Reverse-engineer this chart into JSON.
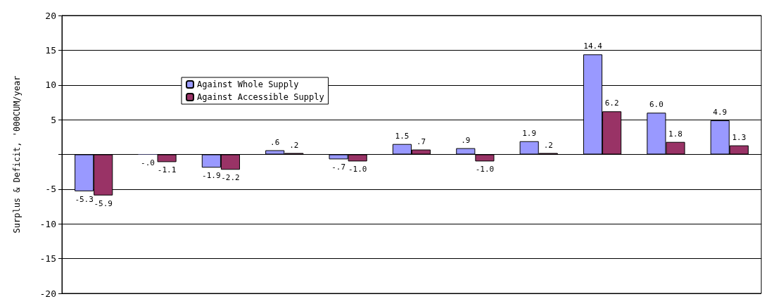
{
  "chart_data": {
    "type": "bar",
    "ylabel": "Surplus & Deficit, '000CUM/year",
    "categories": [
      null,
      null,
      null,
      null,
      null,
      null,
      null,
      null,
      null,
      null,
      null
    ],
    "series": [
      {
        "name": "Against Whole Supply",
        "color": "#9999ff",
        "values": [
          -5.3,
          -0.04,
          -1.9,
          0.6,
          -0.7,
          1.5,
          0.9,
          1.9,
          14.4,
          6.0,
          4.9
        ],
        "value_labels": [
          "-5.3",
          "-.0",
          "-1.9",
          ".6",
          "-.7",
          "1.5",
          ".9",
          "1.9",
          "14.4",
          "6.0",
          "4.9"
        ]
      },
      {
        "name": "Against Accessible Supply",
        "color": "#993366",
        "values": [
          -5.9,
          -1.1,
          -2.2,
          0.2,
          -1.0,
          0.7,
          -1.0,
          0.2,
          6.2,
          1.8,
          1.3
        ],
        "value_labels": [
          "-5.9",
          "-1.1",
          "-2.2",
          ".2",
          "-1.0",
          ".7",
          "-1.0",
          ".2",
          "6.2",
          "1.8",
          "1.3"
        ]
      }
    ],
    "ylim": [
      -20,
      20
    ],
    "yticks": [
      -20,
      -15,
      -10,
      -5,
      {
        "value": 0,
        "label": null
      },
      5,
      10,
      15,
      20
    ],
    "grid": "y",
    "legend": "top left"
  }
}
